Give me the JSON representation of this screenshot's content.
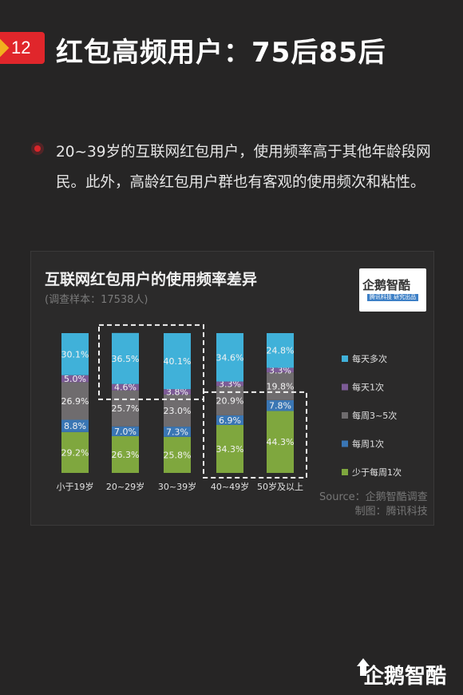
{
  "header": {
    "badge_number": "12",
    "title": "红包高频用户：75后85后"
  },
  "bullet": {
    "text": "20~39岁的互联网红包用户，使用频率高于其他年龄段网民。此外，高龄红包用户群也有客观的使用频次和粘性。"
  },
  "logo": {
    "text": "企鹅智酷",
    "subtext": "腾讯科技 研究出品"
  },
  "source": {
    "line1": "Source：企鹅智酷调查",
    "line2": "制图：腾讯科技"
  },
  "brand": {
    "text": "企鹅智酷"
  },
  "colors": {
    "accent": "#e0262b",
    "badge_notch": "#f2b01e"
  },
  "chart_data": {
    "type": "bar",
    "stacked": true,
    "title": "互联网红包用户的使用频率差异",
    "subtitle": "(调查样本：17538人)",
    "categories": [
      "小于19岁",
      "20~29岁",
      "30~39岁",
      "40~49岁",
      "50岁及以上"
    ],
    "series": [
      {
        "name": "少于每周1次",
        "color": "#7fa73e",
        "values": [
          29.2,
          26.3,
          25.8,
          34.3,
          44.3
        ],
        "labels": [
          "29.2%",
          "26.3%",
          "25.8%",
          "34.3%",
          "44.3%"
        ]
      },
      {
        "name": "每周1次",
        "color": "#3a76b4",
        "values": [
          8.8,
          7.0,
          7.3,
          6.9,
          7.8
        ],
        "labels": [
          "8.8%",
          "7.0%",
          "7.3%",
          "6.9%",
          "7.8%"
        ]
      },
      {
        "name": "每周3~5次",
        "color": "#6f6c6e",
        "values": [
          26.9,
          25.7,
          23.0,
          20.9,
          19.8
        ],
        "labels": [
          "26.9%",
          "25.7%",
          "23.0%",
          "20.9%",
          "19.8%"
        ]
      },
      {
        "name": "每天1次",
        "color": "#7c5b96",
        "values": [
          5.0,
          4.6,
          3.8,
          3.3,
          3.3
        ],
        "labels": [
          "5.0%",
          "4.6%",
          "3.8%",
          "3.3%",
          "3.3%"
        ]
      },
      {
        "name": "每天多次",
        "color": "#40b1d9",
        "values": [
          30.1,
          36.5,
          40.1,
          34.6,
          24.8
        ],
        "labels": [
          "30.1%",
          "36.5%",
          "40.1%",
          "34.6%",
          "24.8%"
        ]
      }
    ],
    "legend_order": [
      "每天多次",
      "每天1次",
      "每周3~5次",
      "每周1次",
      "少于每周1次"
    ],
    "legend_position": "right",
    "highlights": [
      {
        "categories": [
          "20~29岁",
          "30~39岁"
        ],
        "series": [
          "每天多次",
          "每天1次"
        ]
      },
      {
        "categories": [
          "40~49岁",
          "50岁及以上"
        ],
        "series": [
          "少于每周1次",
          "每周1次"
        ]
      }
    ],
    "grid": false
  }
}
